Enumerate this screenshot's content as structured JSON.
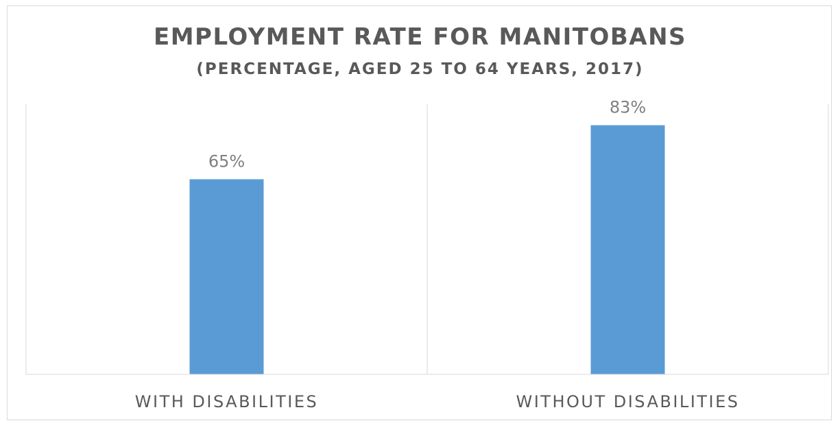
{
  "chart_data": {
    "type": "bar",
    "title": "EMPLOYMENT RATE FOR MANITOBANS",
    "subtitle": "(PERCENTAGE, AGED 25 TO 64 YEARS, 2017)",
    "categories": [
      "WITH DISABILITIES",
      "WITHOUT DISABILITIES"
    ],
    "values": [
      65,
      83
    ],
    "data_labels": [
      "65%",
      "83%"
    ],
    "ylim": [
      0,
      90
    ],
    "bar_color": "#5b9bd5",
    "grid": "vertical category separators",
    "legend": "none"
  }
}
